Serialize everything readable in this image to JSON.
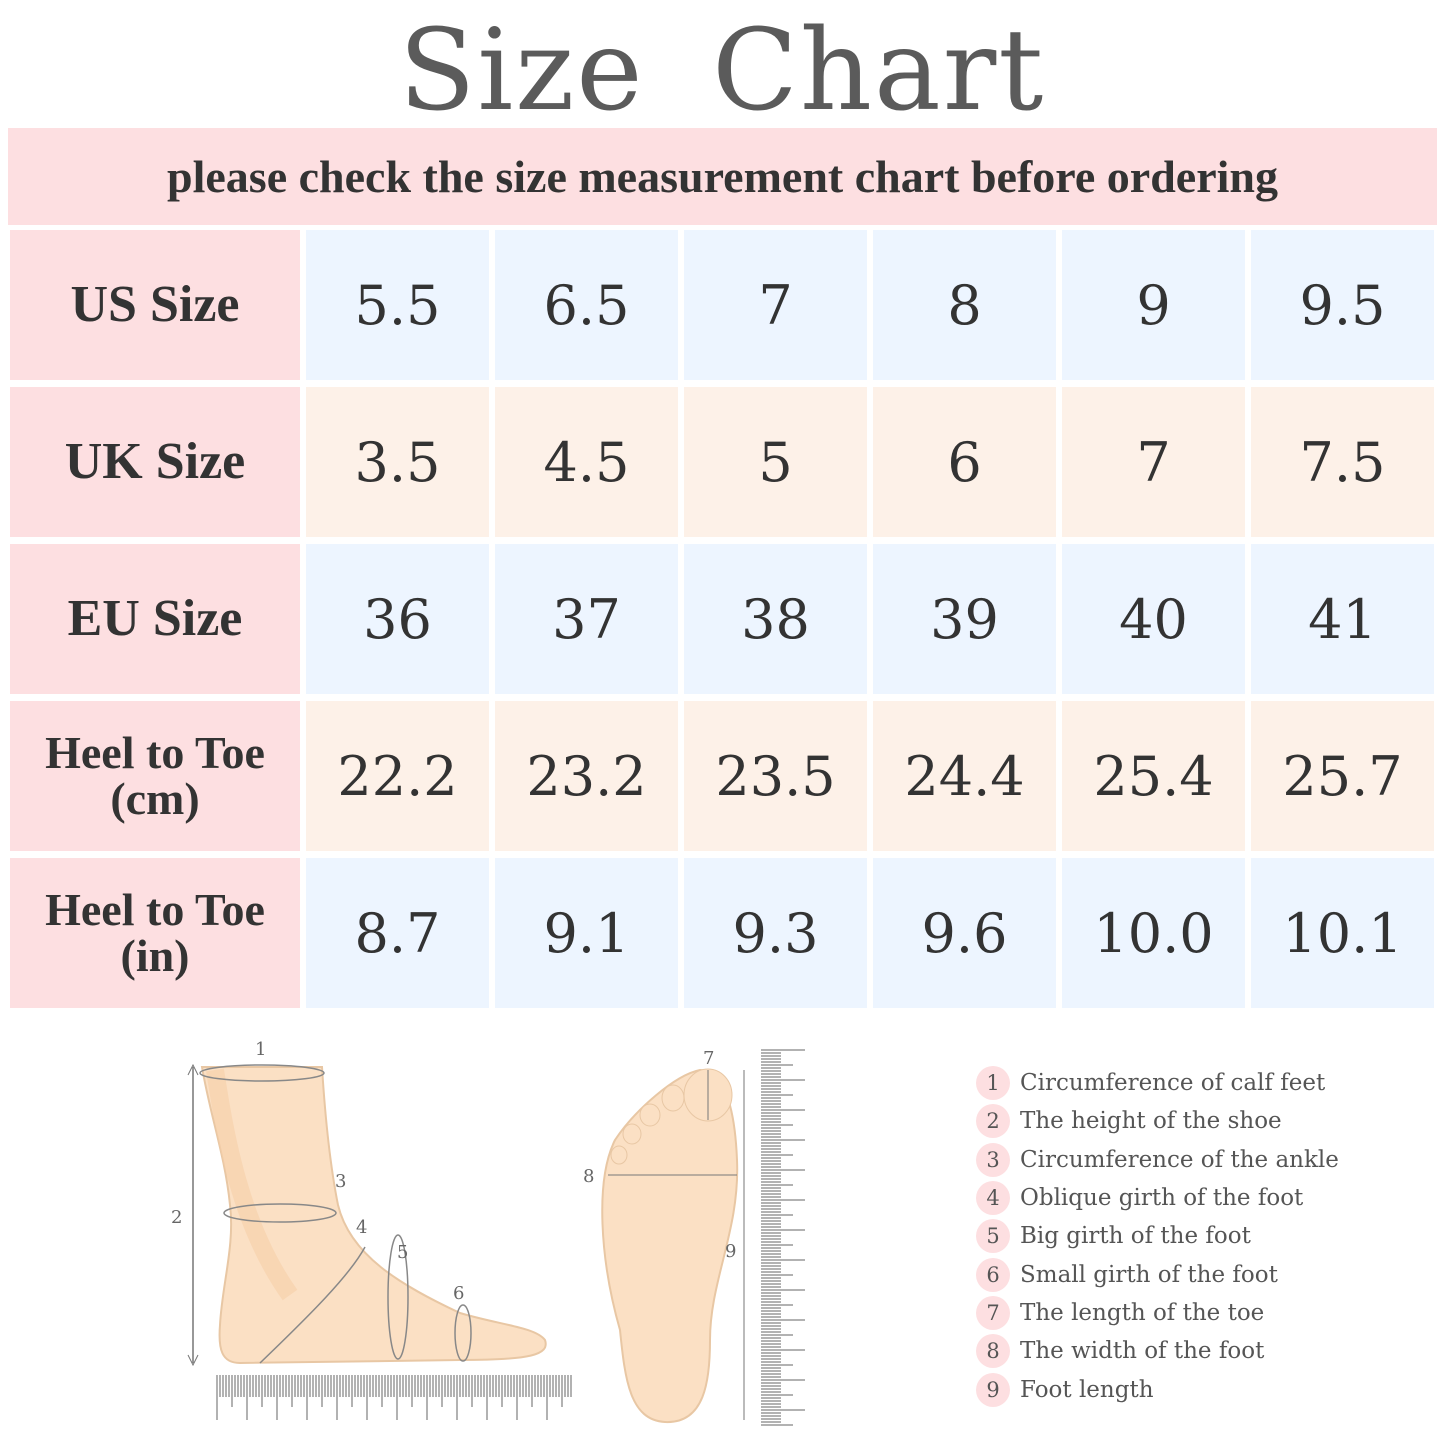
{
  "title": "Size  Chart",
  "banner": "please check the size measurement chart before ordering",
  "colors": {
    "label_bg": "#fddfe1",
    "row_blue": "#edf5ff",
    "row_peach": "#fdf1e8",
    "text": "#333333",
    "title": "#5b5b5b"
  },
  "table": [
    {
      "label": "US Size",
      "values": [
        "5.5",
        "6.5",
        "7",
        "8",
        "9",
        "9.5"
      ]
    },
    {
      "label": "UK Size",
      "values": [
        "3.5",
        "4.5",
        "5",
        "6",
        "7",
        "7.5"
      ]
    },
    {
      "label": "EU Size",
      "values": [
        "36",
        "37",
        "38",
        "39",
        "40",
        "41"
      ]
    },
    {
      "label": "Heel to Toe (cm)",
      "values": [
        "22.2",
        "23.2",
        "23.5",
        "24.4",
        "25.4",
        "25.7"
      ]
    },
    {
      "label": "Heel to Toe (in)",
      "values": [
        "8.7",
        "9.1",
        "9.3",
        "9.6",
        "10.0",
        "10.1"
      ]
    }
  ],
  "diagram_numbers": [
    "1",
    "2",
    "3",
    "4",
    "5",
    "6",
    "7",
    "8",
    "9"
  ],
  "legend": [
    {
      "num": "1",
      "text": "Circumference of calf feet"
    },
    {
      "num": "2",
      "text": "The height of the shoe"
    },
    {
      "num": "3",
      "text": "Circumference of the ankle"
    },
    {
      "num": "4",
      "text": "Oblique girth of the foot"
    },
    {
      "num": "5",
      "text": "Big girth of the foot"
    },
    {
      "num": "6",
      "text": "Small girth of the foot"
    },
    {
      "num": "7",
      "text": "The length of the toe"
    },
    {
      "num": "8",
      "text": "The width of the foot"
    },
    {
      "num": "9",
      "text": "Foot length"
    }
  ]
}
